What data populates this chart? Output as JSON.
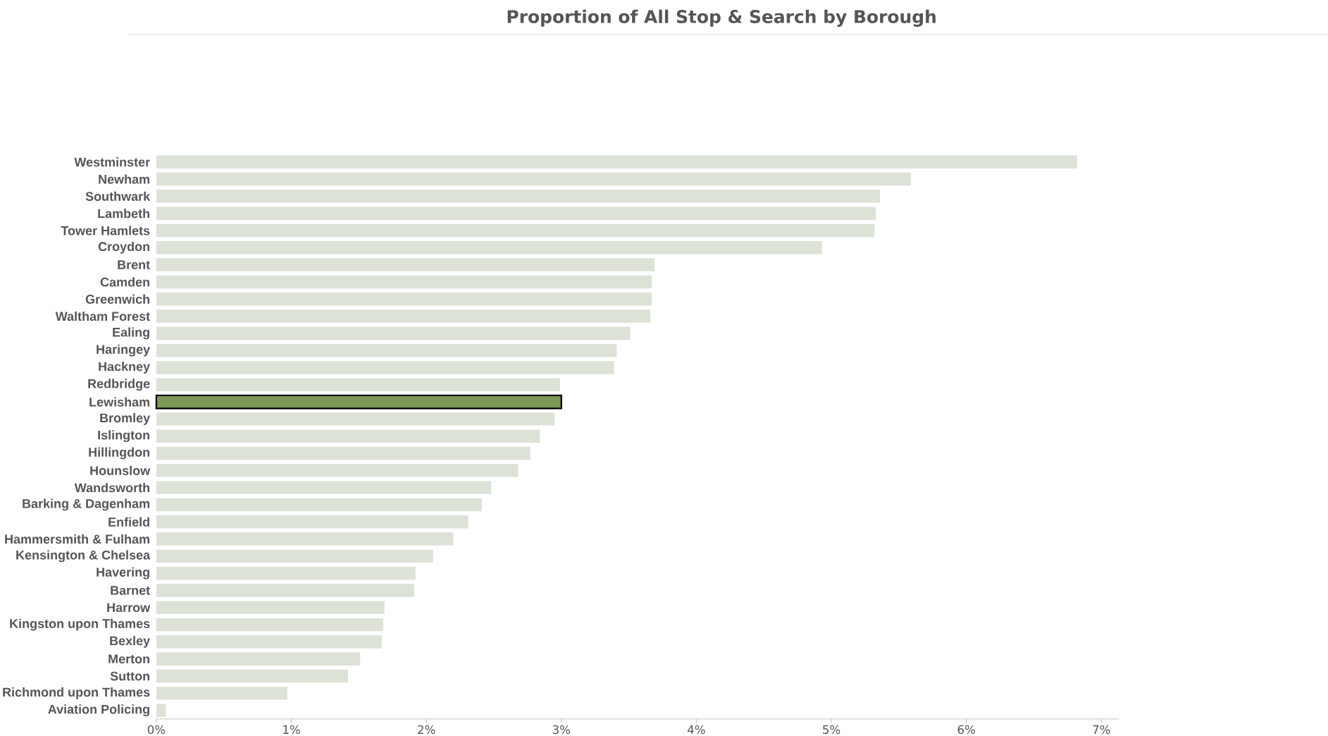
{
  "chart_data": {
    "type": "bar",
    "orientation": "horizontal",
    "title": "Proportion of All Stop & Search by Borough",
    "categories": [
      "Westminster",
      "Newham",
      "Southwark",
      "Lambeth",
      "Tower Hamlets",
      "Croydon",
      "Brent",
      "Camden",
      "Greenwich",
      "Waltham Forest",
      "Ealing",
      "Haringey",
      "Hackney",
      "Redbridge",
      "Lewisham",
      "Bromley",
      "Islington",
      "Hillingdon",
      "Hounslow",
      "Wandsworth",
      "Barking & Dagenham",
      "Enfield",
      "Hammersmith & Fulham",
      "Kensington & Chelsea",
      "Havering",
      "Barnet",
      "Harrow",
      "Kingston upon Thames",
      "Bexley",
      "Merton",
      "Sutton",
      "Richmond upon Thames",
      "Aviation Policing"
    ],
    "values": [
      6.82,
      5.59,
      5.36,
      5.33,
      5.32,
      4.93,
      3.69,
      3.67,
      3.67,
      3.66,
      3.51,
      3.41,
      3.39,
      2.99,
      3.0,
      2.95,
      2.84,
      2.77,
      2.68,
      2.48,
      2.41,
      2.31,
      2.2,
      2.05,
      1.92,
      1.91,
      1.69,
      1.68,
      1.67,
      1.51,
      1.42,
      0.97,
      0.07
    ],
    "colors": [
      "#dde2d7",
      "#dde2d7",
      "#dde2d7",
      "#dde2d7",
      "#dde2d7",
      "#dde2d7",
      "#dde2d7",
      "#dde2d7",
      "#dde2d7",
      "#dde2d7",
      "#dde2d7",
      "#dde2d7",
      "#dde2d7",
      "#dde2d7",
      "#7c9a55",
      "#dde2d7",
      "#dde2d7",
      "#dde2d7",
      "#dde2d7",
      "#dde2d7",
      "#dde2d7",
      "#dde2d7",
      "#dde2d7",
      "#dde2d7",
      "#dde2d7",
      "#dde2d7",
      "#dde2d7",
      "#dde2d7",
      "#dde2d7",
      "#dde2d7",
      "#dde2d7",
      "#dde2d7",
      "#dde2d7"
    ],
    "xlim": [
      0,
      7.13
    ],
    "xticks": [
      {
        "value": 0,
        "label": "0%"
      },
      {
        "value": 1,
        "label": "1%"
      },
      {
        "value": 2,
        "label": "2%"
      },
      {
        "value": 3,
        "label": "3%"
      },
      {
        "value": 4,
        "label": "4%"
      },
      {
        "value": 5,
        "label": "5%"
      },
      {
        "value": 6,
        "label": "6%"
      },
      {
        "value": 7,
        "label": "7%"
      }
    ],
    "grid": false
  }
}
